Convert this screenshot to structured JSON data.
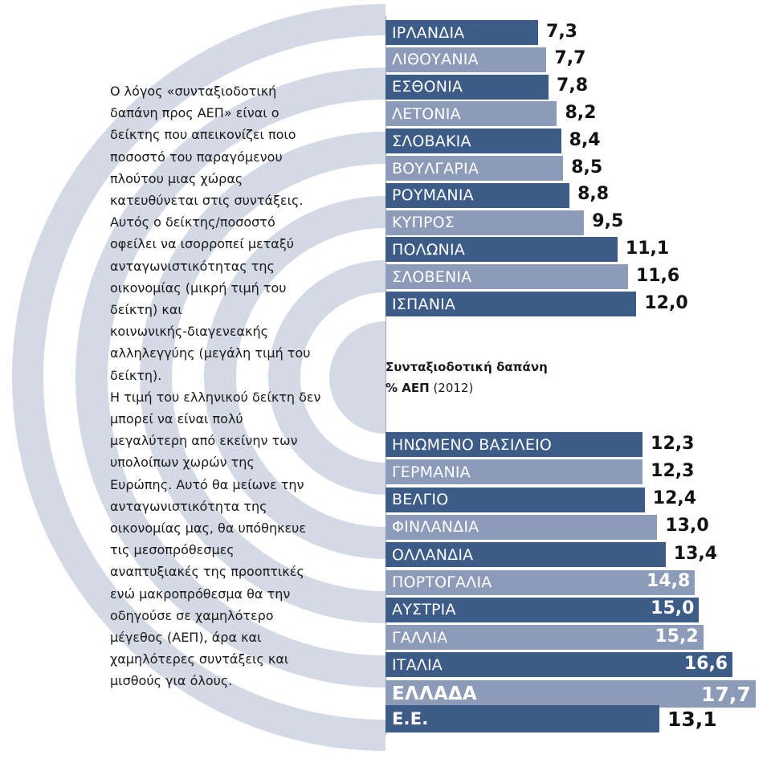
{
  "intro_lines": [
    "Ο λόγος «συνταξιοδοτική",
    "δαπάνη προς ΑΕΠ» είναι ο",
    "δείκτης που απεικονίζει ποιο",
    "ποσοστό του παραγόμενου",
    "πλούτου μιας χώρας",
    "κατευθύνεται στις συντάξεις.",
    "Αυτός ο δείκτης/ποσοστό",
    "οφείλει να ισορροπεί μεταξύ",
    "ανταγωνιστικότητας της",
    "οικονομίας (μικρή τιμή του",
    "δείκτη) και",
    "κοινωνικής-διαγενεακής",
    "αλληλεγγύης (μεγάλη τιμή του",
    "δείκτη).",
    "Η τιμή του ελληνικού δείκτη δεν",
    "μπορεί να είναι πολύ",
    "μεγαλύτερη από εκείνην των",
    "υπολοίπων χωρών της",
    "Ευρώπης. Αυτό θα μείωνε την",
    "ανταγωνιστικότητα της",
    "οικονομίας μας, θα υπόθηκευε",
    "τις μεσοπρόθεσμες",
    "αναπτυξιακές της προοπτικές",
    "ενώ μακροπρόθεσμα θα την",
    "οδηγούσε σε χαμηλότερο",
    "μέγεθος (ΑΕΠ), άρα και",
    "χαμηλότερες συντάξεις και",
    "μισθούς για όλους."
  ],
  "caption": {
    "title": "Συνταξιοδοτική δαπάνη",
    "unit": "% ΑΕΠ",
    "year": "(2012)"
  },
  "colors": {
    "dark": "#3c5b87",
    "light": "#8c9bb8",
    "rings": "#d3dae6"
  },
  "chart_data": {
    "type": "bar",
    "orientation": "horizontal",
    "title": "Συνταξιοδοτική δαπάνη % ΑΕΠ (2012)",
    "categories": [
      "ΙΡΛΑΝΔΙΑ",
      "ΛΙΘΟΥΑΝΙΑ",
      "ΕΣΘΟΝΙΑ",
      "ΛΕΤΟΝΙΑ",
      "ΣΛΟΒΑΚΙΑ",
      "ΒΟΥΛΓΑΡΙΑ",
      "ΡΟΥΜΑΝΙΑ",
      "ΚΥΠΡΟΣ",
      "ΠΟΛΩΝΙΑ",
      "ΣΛΟΒΕΝΙΑ",
      "ΙΣΠΑΝΙΑ",
      "ΗΝΩΜΕΝΟ ΒΑΣΙΛΕΙΟ",
      "ΓΕΡΜΑΝΙΑ",
      "ΒΕΛΓΙΟ",
      "ΦΙΝΛΑΝΔΙΑ",
      "ΟΛΛΑΝΔΙΑ",
      "ΠΟΡΤΟΓΑΛΙΑ",
      "ΑΥΣΤΡΙΑ",
      "ΓΑΛΛΙΑ",
      "ΙΤΑΛΙΑ",
      "ΕΛΛΑΔΑ",
      "Ε.Ε."
    ],
    "values": [
      7.3,
      7.7,
      7.8,
      8.2,
      8.4,
      8.5,
      8.8,
      9.5,
      11.1,
      11.6,
      12.0,
      12.3,
      12.3,
      12.4,
      13.0,
      13.4,
      14.8,
      15.0,
      15.2,
      16.6,
      17.7,
      13.1
    ],
    "labels": [
      "7,3",
      "7,7",
      "7,8",
      "8,2",
      "8,4",
      "8,5",
      "8,8",
      "9,5",
      "11,1",
      "11,6",
      "12,0",
      "12,3",
      "12,3",
      "12,4",
      "13,0",
      "13,4",
      "14,8",
      "15,0",
      "15,2",
      "16,6",
      "17,7",
      "13,1"
    ],
    "groups": [
      {
        "start": 0,
        "count": 11
      },
      {
        "start": 11,
        "count": 11
      }
    ],
    "highlight": [
      "ΕΛΛΑΔΑ",
      "Ε.Ε."
    ]
  }
}
